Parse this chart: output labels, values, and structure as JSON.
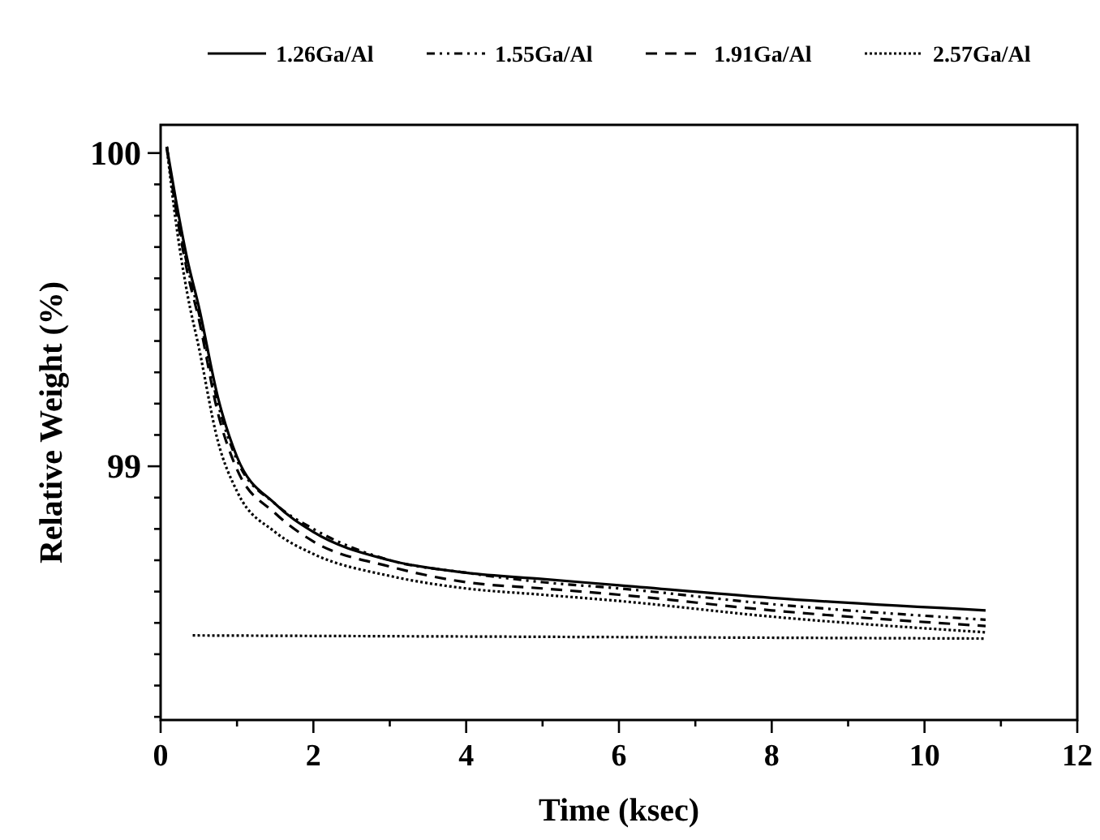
{
  "chart_data": {
    "type": "line",
    "xlabel": "Time (ksec)",
    "ylabel": "Relative Weight (%)",
    "legend": "top",
    "grid": false,
    "xlim": [
      0,
      12
    ],
    "ylim": [
      98.19,
      100.09
    ],
    "xticks": [
      0,
      {
        "value": 1,
        "label": null
      },
      2,
      {
        "value": 3,
        "label": null
      },
      4,
      {
        "value": 5,
        "label": null
      },
      6,
      {
        "value": 7,
        "label": null
      },
      8,
      {
        "value": 9,
        "label": null
      },
      10,
      {
        "value": 11,
        "label": null
      },
      12
    ],
    "yticks": [
      {
        "value": 98.2,
        "label": null
      },
      {
        "value": 98.3,
        "label": null
      },
      {
        "value": 98.4,
        "label": null
      },
      {
        "value": 98.5,
        "label": null
      },
      {
        "value": 98.6,
        "label": null
      },
      {
        "value": 98.7,
        "label": null
      },
      {
        "value": 98.8,
        "label": null
      },
      {
        "value": 98.9,
        "label": null
      },
      99,
      {
        "value": 99.1,
        "label": null
      },
      {
        "value": 99.2,
        "label": null
      },
      {
        "value": 99.3,
        "label": null
      },
      {
        "value": 99.4,
        "label": null
      },
      {
        "value": 99.5,
        "label": null
      },
      {
        "value": 99.6,
        "label": null
      },
      {
        "value": 99.7,
        "label": null
      },
      {
        "value": 99.8,
        "label": null
      },
      {
        "value": 99.9,
        "label": null
      },
      100
    ],
    "x": [
      0.08,
      0.2,
      0.35,
      0.5,
      0.75,
      1,
      1.5,
      2,
      3,
      4,
      5,
      6,
      8,
      10.8
    ],
    "series": [
      {
        "name": "1.26Ga/Al",
        "color": "#000000",
        "line_style": "solid",
        "values": [
          100.02,
          99.85,
          99.66,
          99.51,
          99.22,
          99.03,
          98.88,
          98.79,
          98.7,
          98.66,
          98.64,
          98.62,
          98.58,
          98.54
        ]
      },
      {
        "name": "1.55Ga/Al",
        "color": "#000000",
        "line_style": "dashdot",
        "values": [
          100.02,
          99.83,
          99.64,
          99.49,
          99.2,
          99.02,
          98.88,
          98.8,
          98.7,
          98.66,
          98.63,
          98.61,
          98.56,
          98.51
        ]
      },
      {
        "name": "1.91Ga/Al",
        "color": "#000000",
        "line_style": "dashed",
        "values": [
          100.02,
          99.82,
          99.62,
          99.47,
          99.17,
          98.99,
          98.85,
          98.76,
          98.68,
          98.63,
          98.61,
          98.59,
          98.54,
          98.49
        ]
      },
      {
        "name": "2.57Ga/Al",
        "color": "#000000",
        "line_style": "dotted",
        "values": [
          100.02,
          99.78,
          99.55,
          99.38,
          99.08,
          98.92,
          98.79,
          98.72,
          98.65,
          98.61,
          98.59,
          98.57,
          98.52,
          98.47
        ]
      },
      {
        "color": "#000000",
        "line_style": "dotted",
        "x": [
          0.42,
          10.8
        ],
        "values": [
          98.46,
          98.45
        ]
      }
    ]
  }
}
